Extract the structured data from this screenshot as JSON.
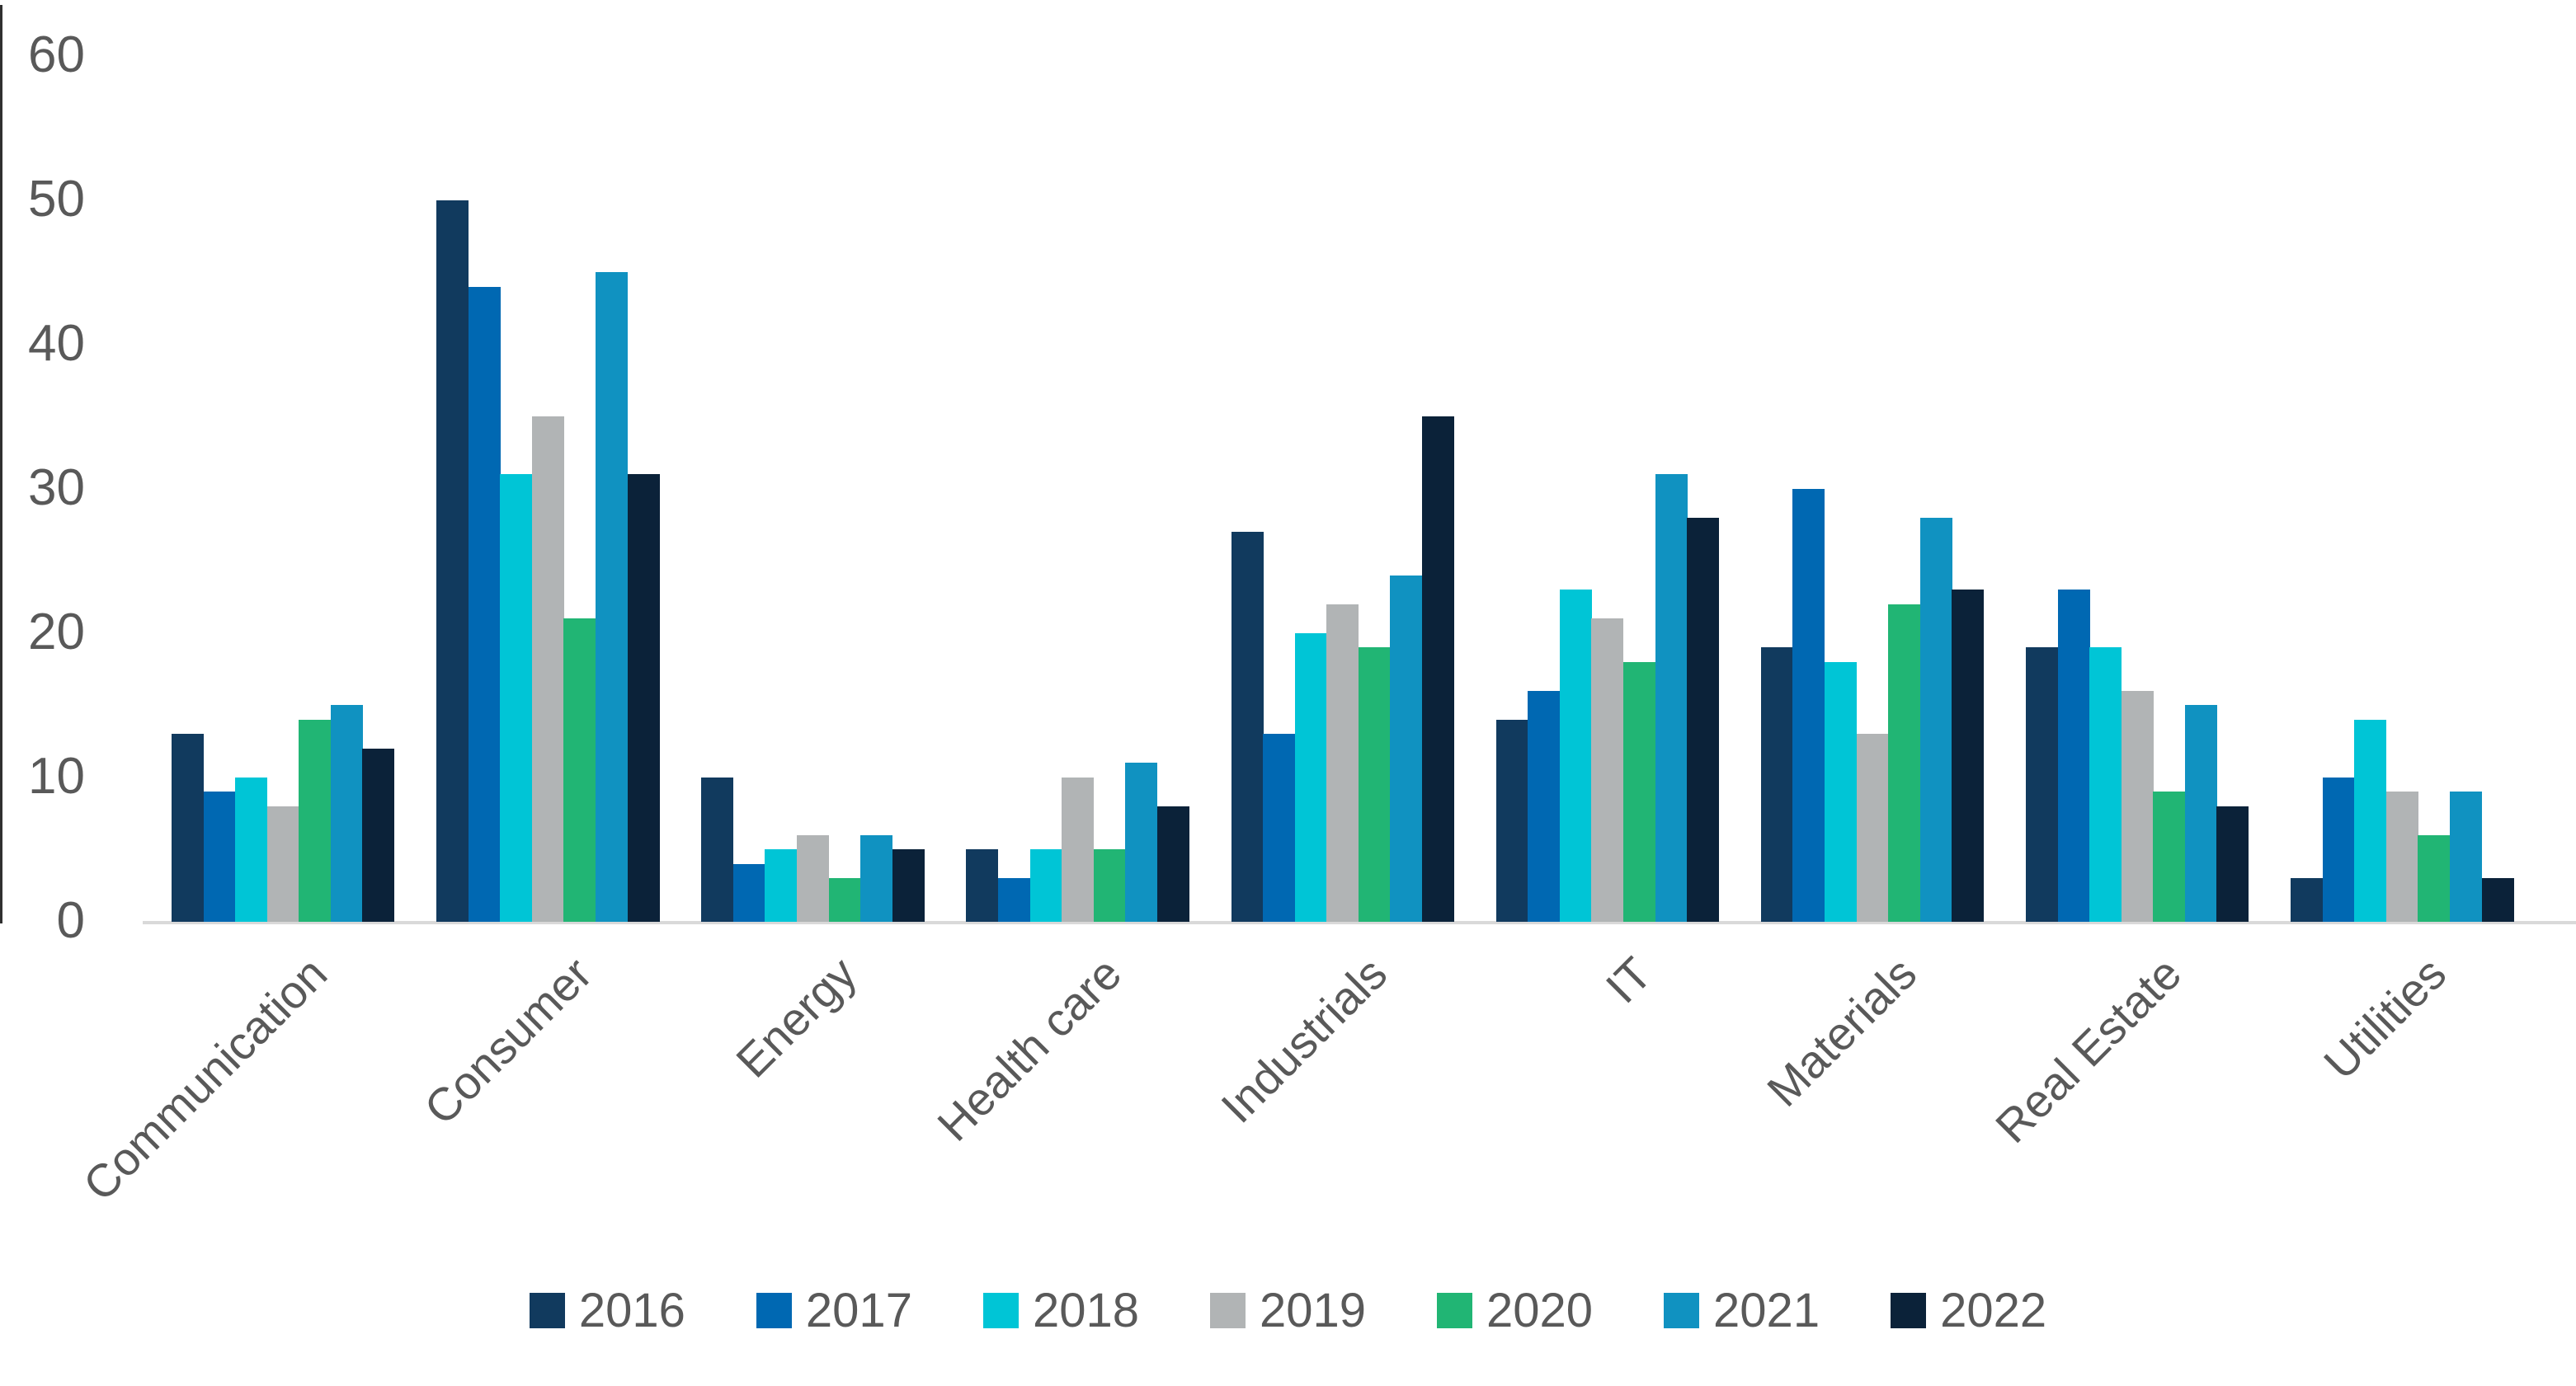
{
  "chart_data": {
    "type": "bar",
    "title": "",
    "categories": [
      "Communication",
      "Consumer",
      "Energy",
      "Health care",
      "Industrials",
      "IT",
      "Materials",
      "Real Estate",
      "Utilities"
    ],
    "series": [
      {
        "name": "2016",
        "color": "#113a5e",
        "values": [
          13,
          50,
          10,
          5,
          27,
          14,
          19,
          19,
          3
        ]
      },
      {
        "name": "2017",
        "color": "#0068b2",
        "values": [
          9,
          44,
          4,
          3,
          13,
          16,
          30,
          23,
          10
        ]
      },
      {
        "name": "2018",
        "color": "#00c5d6",
        "values": [
          10,
          31,
          5,
          5,
          20,
          23,
          18,
          19,
          14
        ]
      },
      {
        "name": "2019",
        "color": "#b1b4b5",
        "values": [
          8,
          35,
          6,
          10,
          22,
          21,
          13,
          16,
          9
        ]
      },
      {
        "name": "2020",
        "color": "#21b574",
        "values": [
          14,
          21,
          3,
          5,
          19,
          18,
          22,
          9,
          6
        ]
      },
      {
        "name": "2021",
        "color": "#1092c1",
        "values": [
          15,
          45,
          6,
          11,
          24,
          31,
          28,
          15,
          9
        ]
      },
      {
        "name": "2022",
        "color": "#0b2239",
        "values": [
          12,
          31,
          5,
          8,
          35,
          28,
          23,
          8,
          3
        ]
      }
    ],
    "ylim": [
      0,
      60
    ],
    "yticks": [
      0,
      10,
      20,
      30,
      40,
      50,
      60
    ],
    "xlabel": "",
    "ylabel": "",
    "grid": false,
    "legend_position": "bottom",
    "colors": {
      "axis_text": "#595959",
      "axis_line_dark": "#303030",
      "axis_line_light": "#d9d9d9",
      "background": "#ffffff"
    }
  }
}
